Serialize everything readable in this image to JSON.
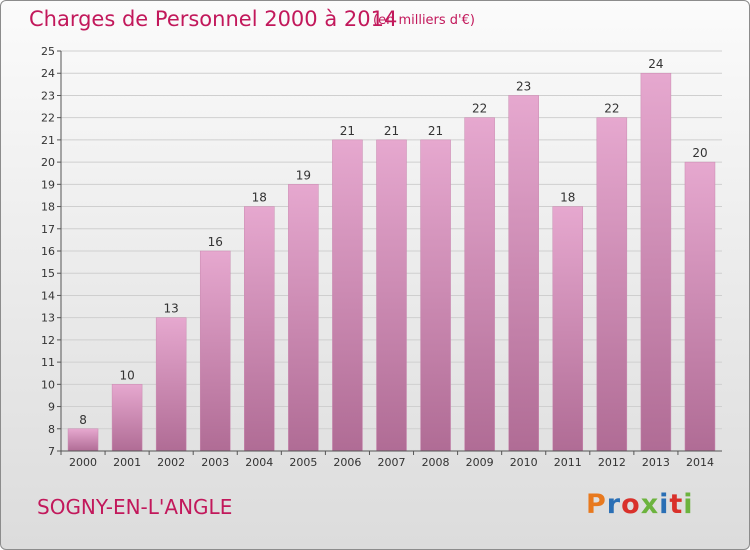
{
  "header": {
    "title": "Charges de Personnel 2000 à 2014",
    "subtitle": "(en milliers d'€)"
  },
  "footer": {
    "commune": "SOGNY-EN-L'ANGLE",
    "logo_text": "Proxiti"
  },
  "colors": {
    "bar_top": "#e6a8cf",
    "bar_bottom": "#b06c95",
    "title": "#c2185b",
    "logo": [
      "#e8791e",
      "#2a6fb5",
      "#d9312b",
      "#6cb33e",
      "#2a6fb5",
      "#d9312b",
      "#6cb33e"
    ]
  },
  "chart_data": {
    "type": "bar",
    "title": "Charges de Personnel 2000 à 2014",
    "subtitle": "(en milliers d'€)",
    "categories": [
      "2000",
      "2001",
      "2002",
      "2003",
      "2004",
      "2005",
      "2006",
      "2007",
      "2008",
      "2009",
      "2010",
      "2011",
      "2012",
      "2013",
      "2014"
    ],
    "values": [
      8,
      10,
      13,
      16,
      18,
      19,
      21,
      21,
      21,
      22,
      23,
      18,
      22,
      24,
      20
    ],
    "ylim": [
      7,
      25
    ],
    "yticks": [
      7,
      8,
      9,
      10,
      11,
      12,
      13,
      14,
      15,
      16,
      17,
      18,
      19,
      20,
      21,
      22,
      23,
      24,
      25
    ],
    "grid": true,
    "xlabel": "",
    "ylabel": ""
  }
}
